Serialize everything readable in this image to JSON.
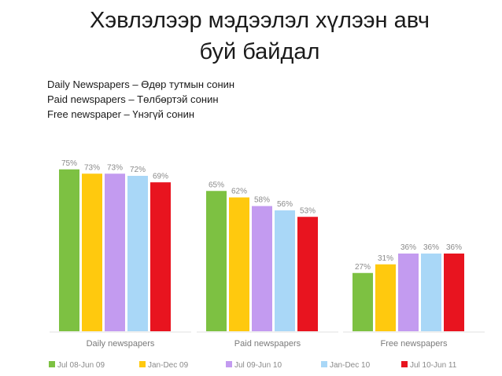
{
  "slide": {
    "title_line1": "Хэвлэлээр мэдээлэл хүлээн авч",
    "title_line2": "буй байдал",
    "notes": [
      "Daily Newspapers – Өдөр тутмын сонин",
      "Paid newspapers – Төлбөртэй сонин",
      "Free newspaper – Үнэгүй сонин"
    ]
  },
  "chart_data": {
    "type": "bar",
    "categories": [
      "Daily newspapers",
      "Paid newspapers",
      "Free newspapers"
    ],
    "series": [
      {
        "name": "Jul 08-Jun 09",
        "color": "#7dc142",
        "values": [
          75,
          65,
          27
        ]
      },
      {
        "name": "Jan-Dec 09",
        "color": "#ffc90e",
        "values": [
          73,
          62,
          31
        ]
      },
      {
        "name": "Jul 09-Jun 10",
        "color": "#c39bf0",
        "values": [
          73,
          58,
          36
        ]
      },
      {
        "name": "Jan-Dec 10",
        "color": "#a9d7f7",
        "values": [
          72,
          56,
          36
        ]
      },
      {
        "name": "Jul 10-Jun 11",
        "color": "#e8141f",
        "values": [
          69,
          53,
          36
        ]
      }
    ],
    "value_suffix": "%",
    "ylim": [
      0,
      100
    ],
    "grid": false,
    "legend_position": "bottom"
  }
}
